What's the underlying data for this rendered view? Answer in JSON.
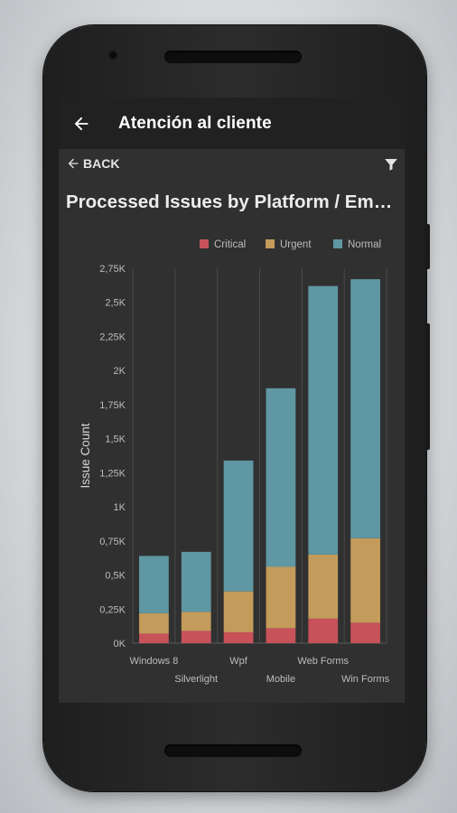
{
  "app": {
    "title": "Atención al cliente",
    "back_label": "BACK"
  },
  "colors": {
    "critical": "#c7525a",
    "urgent": "#c39b5a",
    "normal": "#5f97a3",
    "screen_bg": "#303030",
    "appbar_bg": "#212121"
  },
  "icons": [
    "back-arrow-icon",
    "back-small-arrow-icon",
    "filter-icon"
  ],
  "chart_data": {
    "type": "bar",
    "stacked": true,
    "title": "Processed Issues by Platform / Emp...",
    "xlabel": "",
    "ylabel": "Issue Count",
    "categories": [
      "Windows 8",
      "Silverlight",
      "Wpf",
      "Mobile",
      "Web Forms",
      "Win Forms"
    ],
    "series": [
      {
        "name": "Critical",
        "color": "#c7525a",
        "values": [
          70,
          90,
          80,
          110,
          180,
          150
        ]
      },
      {
        "name": "Urgent",
        "color": "#c39b5a",
        "values": [
          150,
          140,
          300,
          450,
          470,
          620
        ]
      },
      {
        "name": "Normal",
        "color": "#5f97a3",
        "values": [
          420,
          440,
          960,
          1310,
          1970,
          1900
        ]
      }
    ],
    "ylim": [
      0,
      2750
    ],
    "yticks": [
      0,
      250,
      500,
      750,
      1000,
      1250,
      1500,
      1750,
      2000,
      2250,
      2500,
      2750
    ],
    "ytick_labels": [
      "0K",
      "0,25K",
      "0,5K",
      "0,75K",
      "1K",
      "1,25K",
      "1,5K",
      "1,75K",
      "2K",
      "2,25K",
      "2,5K",
      "2,75K"
    ],
    "legend_position": "top-right",
    "grid": "vertical"
  }
}
